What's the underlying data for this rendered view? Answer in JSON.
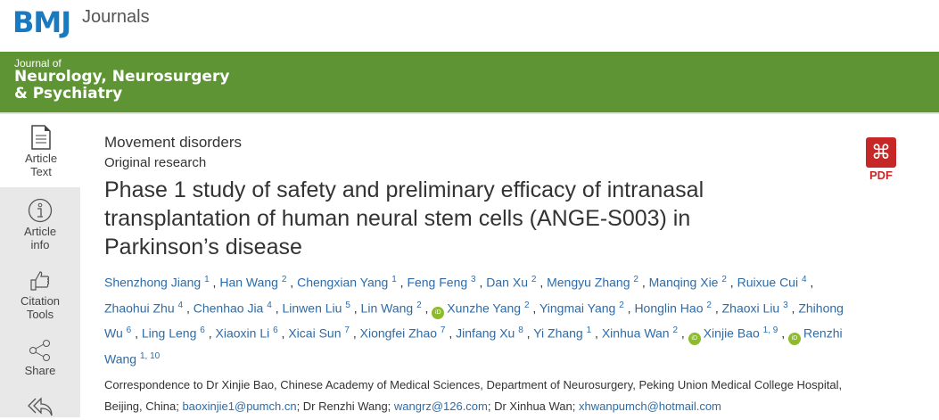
{
  "header": {
    "logo": "BMJ",
    "brand": "Journals"
  },
  "journal": {
    "prefix": "Journal of",
    "name_line1": "Neurology, Neurosurgery",
    "name_line2": "& Psychiatry"
  },
  "sidebar": {
    "items": [
      {
        "label1": "Article",
        "label2": "Text",
        "icon": "document-icon",
        "active": true
      },
      {
        "label1": "Article",
        "label2": "info",
        "icon": "info-icon"
      },
      {
        "label1": "Citation",
        "label2": "Tools",
        "icon": "thumbs-up-icon"
      },
      {
        "label1": "Share",
        "label2": "",
        "icon": "share-icon"
      },
      {
        "label1": "",
        "label2": "",
        "icon": "reply-all-icon"
      }
    ]
  },
  "article": {
    "section": "Movement disorders",
    "type": "Original research",
    "title": "Phase 1 study of safety and preliminary efficacy of intranasal transplantation of human neural stem cells (ANGE-S003) in Parkinson’s disease",
    "authors": [
      {
        "name": "Shenzhong Jiang",
        "sup": "1"
      },
      {
        "name": "Han Wang",
        "sup": "2"
      },
      {
        "name": "Chengxian Yang",
        "sup": "1"
      },
      {
        "name": "Feng Feng",
        "sup": "3"
      },
      {
        "name": "Dan Xu",
        "sup": "2"
      },
      {
        "name": "Mengyu Zhang",
        "sup": "2"
      },
      {
        "name": "Manqing Xie",
        "sup": "2"
      },
      {
        "name": "Ruixue Cui",
        "sup": "4"
      },
      {
        "name": "Zhaohui Zhu",
        "sup": "4"
      },
      {
        "name": "Chenhao Jia",
        "sup": "4"
      },
      {
        "name": "Linwen Liu",
        "sup": "5"
      },
      {
        "name": "Lin Wang",
        "sup": "2"
      },
      {
        "name": "Xunzhe Yang",
        "sup": "2",
        "orcid": true
      },
      {
        "name": "Yingmai Yang",
        "sup": "2"
      },
      {
        "name": "Honglin Hao",
        "sup": "2"
      },
      {
        "name": "Zhaoxi Liu",
        "sup": "3"
      },
      {
        "name": "Zhihong Wu",
        "sup": "6"
      },
      {
        "name": "Ling Leng",
        "sup": "6"
      },
      {
        "name": "Xiaoxin Li",
        "sup": "6"
      },
      {
        "name": "Xicai Sun",
        "sup": "7"
      },
      {
        "name": "Xiongfei Zhao",
        "sup": "7"
      },
      {
        "name": "Jinfang Xu",
        "sup": "8"
      },
      {
        "name": "Yi Zhang",
        "sup": "1"
      },
      {
        "name": "Xinhua Wan",
        "sup": "2"
      },
      {
        "name": "Xinjie Bao",
        "sup": "1, 9",
        "orcid": true
      },
      {
        "name": "Renzhi Wang",
        "sup": "1, 10",
        "orcid": true
      }
    ],
    "orcid_label": "iD",
    "correspondence": {
      "text1": "Correspondence to Dr Xinjie Bao, Chinese Academy of Medical Sciences, Department of Neurosurgery, Peking Union Medical College Hospital, Beijing, China; ",
      "email1": "baoxinjie1@pumch.cn",
      "text2": "; Dr Renzhi Wang; ",
      "email2": "wangrz@126.com",
      "text3": "; Dr Xinhua Wan; ",
      "email3": "xhwanpumch@hotmail.com"
    },
    "pdf_label": "PDF"
  },
  "colors": {
    "brand_blue": "#1a7ac0",
    "journal_green": "#5f9435",
    "link": "#2d6ca8",
    "pdf_red": "#c62828",
    "orcid": "#8cbc2a"
  }
}
